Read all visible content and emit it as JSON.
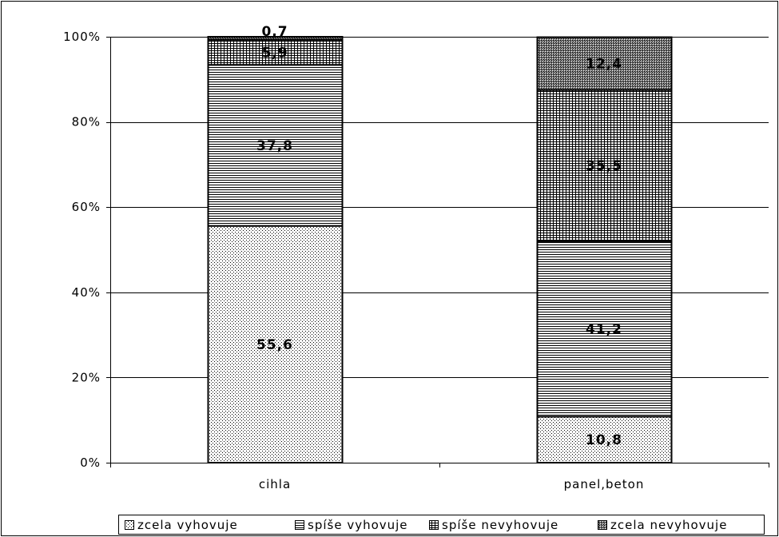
{
  "chart_data": {
    "type": "bar",
    "stacked": true,
    "categories": [
      "cihla",
      "panel,beton"
    ],
    "series": [
      {
        "name": "zcela vyhovuje",
        "values": [
          55.6,
          10.8
        ],
        "labels": [
          "55,6",
          "10,8"
        ],
        "pattern": "dots"
      },
      {
        "name": "spíše vyhovuje",
        "values": [
          37.8,
          41.2
        ],
        "labels": [
          "37,8",
          "41,2"
        ],
        "pattern": "horizontal-lines"
      },
      {
        "name": "spíše nevyhovuje",
        "values": [
          5.9,
          35.5
        ],
        "labels": [
          "5,9",
          "35,5"
        ],
        "pattern": "grid"
      },
      {
        "name": "zcela nevyhovuje",
        "values": [
          0.7,
          12.4
        ],
        "labels": [
          "0,7",
          "12,4"
        ],
        "pattern": "dense-dots"
      }
    ],
    "yticks": [
      "0%",
      "20%",
      "40%",
      "60%",
      "80%",
      "100%"
    ],
    "ylim": [
      0,
      100
    ],
    "grid": true,
    "legend": "bottom",
    "title": "",
    "xlabel": "",
    "ylabel": ""
  }
}
